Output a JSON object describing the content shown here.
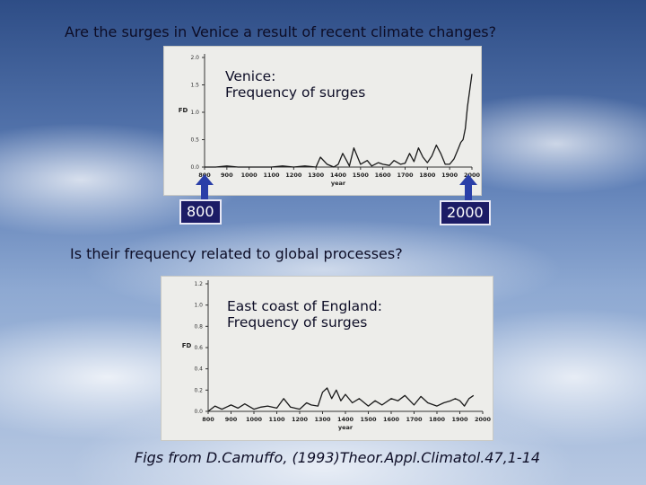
{
  "title": "Are the surges in Venice a  result of recent climate changes?",
  "question2": "Is their frequency related to global processes?",
  "credit": "Figs from D.Camuffo, (1993)Theor.Appl.Climatol.47,1-14",
  "markers": {
    "start": "800",
    "end": "2000"
  },
  "chart_data": [
    {
      "type": "line",
      "title_line1": "Venice:",
      "title_line2": "Frequency of surges",
      "xlabel": "year",
      "ylabel": "FD",
      "xlim": [
        800,
        2000
      ],
      "ylim": [
        0,
        2.0
      ],
      "x_ticks": [
        "800",
        "900",
        "1000",
        "1100",
        "1200",
        "1300",
        "1400",
        "1500",
        "1600",
        "1700",
        "1800",
        "1900",
        "2000"
      ],
      "y_ticks": [
        "0.0",
        "0.5",
        "1.0",
        "1.5",
        "2.0"
      ],
      "x": [
        800,
        850,
        900,
        950,
        1000,
        1050,
        1100,
        1150,
        1200,
        1250,
        1300,
        1320,
        1350,
        1380,
        1400,
        1420,
        1440,
        1450,
        1470,
        1500,
        1530,
        1550,
        1580,
        1600,
        1630,
        1650,
        1680,
        1700,
        1720,
        1740,
        1760,
        1780,
        1800,
        1820,
        1840,
        1860,
        1880,
        1900,
        1920,
        1940,
        1950,
        1960,
        1970,
        1980,
        1990,
        2000
      ],
      "y": [
        0.0,
        0.0,
        0.02,
        0.0,
        0.0,
        0.0,
        0.0,
        0.02,
        0.0,
        0.02,
        0.0,
        0.18,
        0.05,
        0.0,
        0.05,
        0.25,
        0.1,
        0.02,
        0.35,
        0.05,
        0.12,
        0.02,
        0.08,
        0.05,
        0.03,
        0.12,
        0.05,
        0.07,
        0.25,
        0.1,
        0.35,
        0.18,
        0.08,
        0.2,
        0.4,
        0.25,
        0.05,
        0.05,
        0.15,
        0.35,
        0.45,
        0.5,
        0.7,
        1.1,
        1.4,
        1.7
      ]
    },
    {
      "type": "line",
      "title_line1": "East coast of England:",
      "title_line2": "Frequency of surges",
      "xlabel": "year",
      "ylabel": "FD",
      "xlim": [
        800,
        2000
      ],
      "ylim": [
        0,
        1.2
      ],
      "x_ticks": [
        "800",
        "900",
        "1000",
        "1100",
        "1200",
        "1300",
        "1400",
        "1500",
        "1600",
        "1700",
        "1800",
        "1900",
        "2000"
      ],
      "y_ticks": [
        "0.0",
        "0.2",
        "0.4",
        "0.6",
        "0.8",
        "1.0",
        "1.2"
      ],
      "x": [
        800,
        830,
        860,
        900,
        930,
        960,
        1000,
        1030,
        1060,
        1100,
        1130,
        1160,
        1200,
        1230,
        1250,
        1280,
        1300,
        1320,
        1340,
        1360,
        1380,
        1400,
        1430,
        1460,
        1500,
        1530,
        1560,
        1600,
        1630,
        1660,
        1700,
        1730,
        1760,
        1800,
        1830,
        1860,
        1880,
        1900,
        1920,
        1940,
        1960
      ],
      "y": [
        0.0,
        0.05,
        0.02,
        0.06,
        0.03,
        0.07,
        0.02,
        0.04,
        0.05,
        0.03,
        0.12,
        0.04,
        0.02,
        0.08,
        0.06,
        0.05,
        0.18,
        0.22,
        0.12,
        0.2,
        0.1,
        0.16,
        0.08,
        0.12,
        0.05,
        0.1,
        0.06,
        0.12,
        0.1,
        0.15,
        0.06,
        0.14,
        0.08,
        0.05,
        0.08,
        0.1,
        0.12,
        0.1,
        0.05,
        0.12,
        0.15
      ]
    }
  ]
}
